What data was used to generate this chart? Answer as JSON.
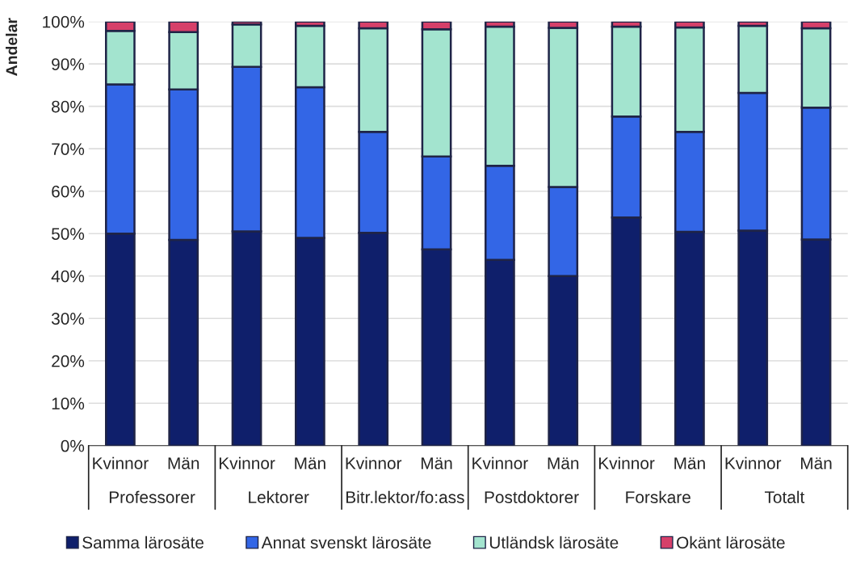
{
  "chart_data": {
    "type": "bar",
    "stacked": true,
    "ylabel": "Andelar",
    "categories": [
      "Kvinnor",
      "Män",
      "Kvinnor",
      "Män",
      "Kvinnor",
      "Män",
      "Kvinnor",
      "Män",
      "Kvinnor",
      "Män",
      "Kvinnor",
      "Män"
    ],
    "annotations": [
      "Professorer",
      "Lektorer",
      "Bitr.lektor/fo:ass",
      "Postdoktorer",
      "Forskare",
      "Totalt"
    ],
    "series": [
      {
        "name": "Samma lärosäte",
        "color": "#0f1f6b",
        "values": [
          50.0,
          48.5,
          50.5,
          49.0,
          50.2,
          46.3,
          43.8,
          40.0,
          53.8,
          50.4,
          50.7,
          48.6
        ]
      },
      {
        "name": "Annat svenskt lärosäte",
        "color": "#3366e6",
        "values": [
          35.2,
          35.5,
          38.8,
          35.5,
          23.8,
          21.9,
          22.2,
          21.0,
          23.8,
          23.6,
          32.5,
          31.1
        ]
      },
      {
        "name": "Utländsk lärosäte",
        "color": "#a3e4cf",
        "values": [
          12.6,
          13.5,
          10.0,
          14.5,
          24.4,
          30.0,
          32.8,
          37.5,
          21.2,
          24.6,
          15.8,
          18.7
        ]
      },
      {
        "name": "Okänt lärosäte",
        "color": "#d6406a",
        "values": [
          2.2,
          2.5,
          0.7,
          1.0,
          1.6,
          1.8,
          1.2,
          1.5,
          1.2,
          1.4,
          1.0,
          1.6
        ]
      }
    ],
    "ylim": [
      0,
      100
    ],
    "yticks": [
      {
        "value": 0,
        "label": "0%"
      },
      {
        "value": 10,
        "label": "10%"
      },
      {
        "value": 20,
        "label": "20%"
      },
      {
        "value": 30,
        "label": "30%"
      },
      {
        "value": 40,
        "label": "40%"
      },
      {
        "value": 50,
        "label": "50%"
      },
      {
        "value": 60,
        "label": "60%"
      },
      {
        "value": 70,
        "label": "70%"
      },
      {
        "value": 80,
        "label": "80%"
      },
      {
        "value": 90,
        "label": "90%"
      },
      {
        "value": 100,
        "label": "100%"
      }
    ],
    "grid": "y",
    "legend": "bottom"
  }
}
